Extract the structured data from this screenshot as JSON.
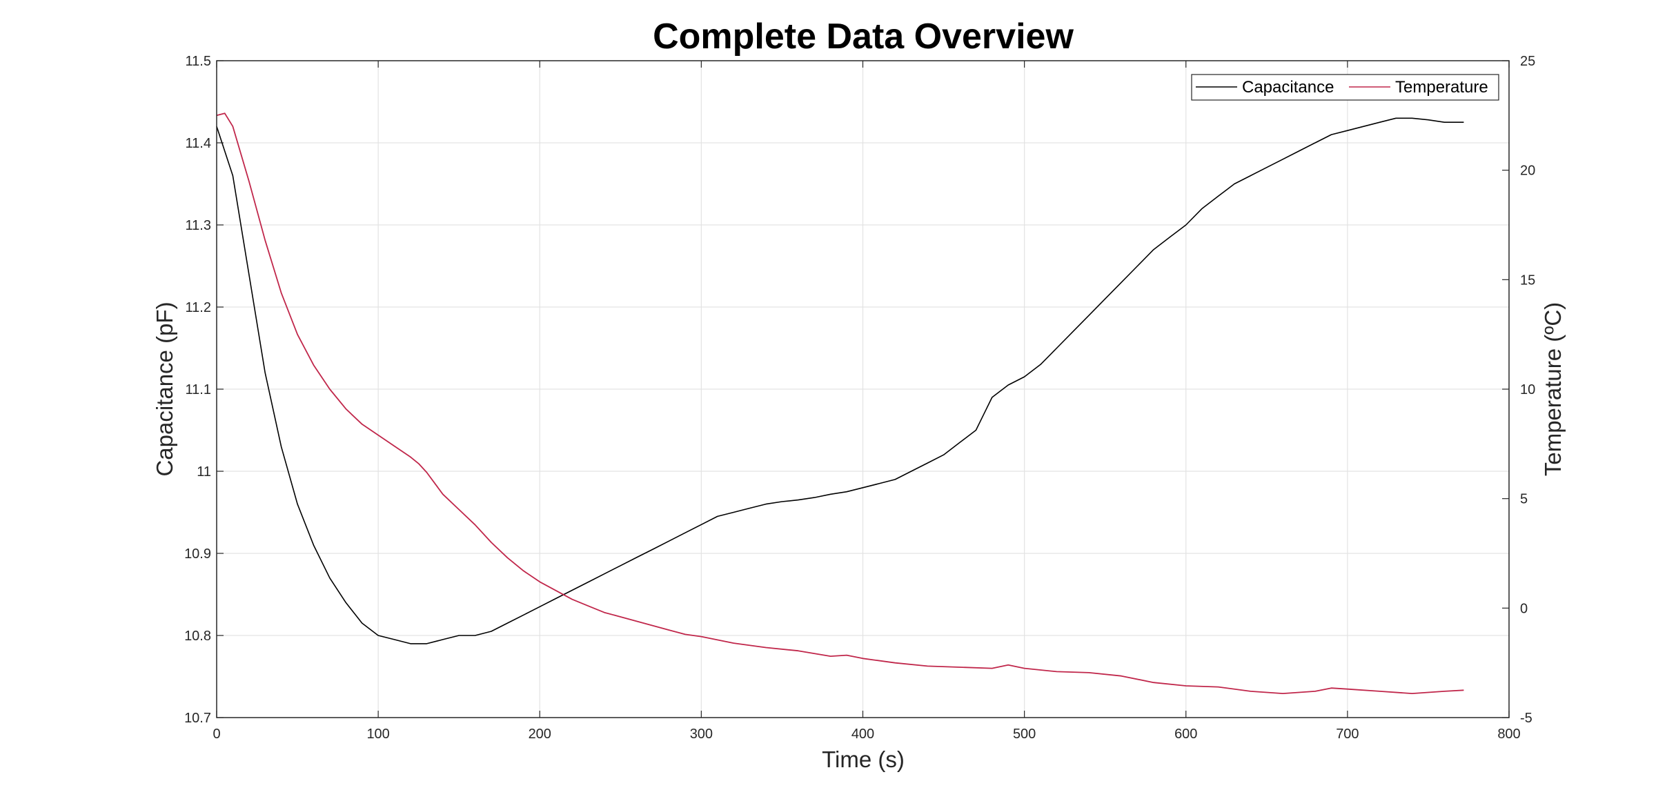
{
  "chart_data": {
    "type": "line",
    "title": "Complete Data Overview",
    "xlabel": "Time (s)",
    "ylabel": "Capacitance (pF)",
    "y2label": "Temperature (ºC)",
    "xlim": [
      0,
      800
    ],
    "ylim": [
      10.7,
      11.5
    ],
    "y2lim": [
      -5,
      25
    ],
    "xticks": [
      0,
      100,
      200,
      300,
      400,
      500,
      600,
      700,
      800
    ],
    "xtick_labels": [
      "0",
      "100",
      "200",
      "300",
      "400",
      "500",
      "600",
      "700",
      "800"
    ],
    "yticks": [
      10.7,
      10.8,
      10.9,
      11.0,
      11.1,
      11.2,
      11.3,
      11.4,
      11.5
    ],
    "ytick_labels": [
      "10.7",
      "10.8",
      "10.9",
      "11",
      "11.1",
      "11.2",
      "11.3",
      "11.4",
      "11.5"
    ],
    "y2ticks": [
      -5,
      0,
      5,
      10,
      15,
      20,
      25
    ],
    "y2tick_labels": [
      "-5",
      "0",
      "5",
      "10",
      "15",
      "20",
      "25"
    ],
    "grid": true,
    "legend_position": "top-right",
    "series": [
      {
        "name": "Capacitance",
        "axis": "left",
        "color": "#000000",
        "x": [
          0,
          10,
          20,
          30,
          40,
          50,
          60,
          70,
          80,
          90,
          100,
          110,
          120,
          130,
          140,
          150,
          160,
          170,
          180,
          190,
          200,
          210,
          220,
          230,
          240,
          250,
          260,
          270,
          280,
          290,
          300,
          310,
          320,
          330,
          340,
          350,
          360,
          370,
          380,
          390,
          400,
          410,
          420,
          430,
          440,
          450,
          460,
          470,
          475,
          480,
          490,
          500,
          510,
          520,
          530,
          540,
          550,
          560,
          570,
          580,
          590,
          600,
          610,
          620,
          630,
          640,
          650,
          660,
          670,
          680,
          690,
          700,
          710,
          720,
          730,
          740,
          750,
          760,
          772
        ],
        "values": [
          11.42,
          11.36,
          11.24,
          11.12,
          11.03,
          10.96,
          10.91,
          10.87,
          10.84,
          10.815,
          10.8,
          10.795,
          10.79,
          10.79,
          10.795,
          10.8,
          10.8,
          10.805,
          10.815,
          10.825,
          10.835,
          10.845,
          10.855,
          10.865,
          10.875,
          10.885,
          10.895,
          10.905,
          10.915,
          10.925,
          10.935,
          10.945,
          10.95,
          10.955,
          10.96,
          10.963,
          10.965,
          10.968,
          10.972,
          10.975,
          10.98,
          10.985,
          10.99,
          11.0,
          11.01,
          11.02,
          11.035,
          11.05,
          11.07,
          11.09,
          11.105,
          11.115,
          11.13,
          11.15,
          11.17,
          11.19,
          11.21,
          11.23,
          11.25,
          11.27,
          11.285,
          11.3,
          11.32,
          11.335,
          11.35,
          11.36,
          11.37,
          11.38,
          11.39,
          11.4,
          11.41,
          11.415,
          11.42,
          11.425,
          11.43,
          11.43,
          11.428,
          11.425,
          11.425
        ]
      },
      {
        "name": "Temperature",
        "axis": "right",
        "color": "#c0264a",
        "x": [
          0,
          5,
          10,
          20,
          30,
          40,
          50,
          60,
          70,
          80,
          90,
          100,
          110,
          120,
          125,
          130,
          140,
          150,
          160,
          170,
          180,
          190,
          200,
          210,
          220,
          230,
          240,
          250,
          260,
          270,
          280,
          290,
          300,
          320,
          340,
          360,
          380,
          390,
          400,
          420,
          440,
          460,
          480,
          490,
          500,
          520,
          540,
          560,
          580,
          600,
          620,
          640,
          660,
          680,
          690,
          700,
          720,
          740,
          760,
          772
        ],
        "values": [
          22.5,
          22.6,
          22.0,
          19.5,
          16.8,
          14.4,
          12.5,
          11.1,
          10.0,
          9.1,
          8.4,
          7.9,
          7.4,
          6.9,
          6.6,
          6.2,
          5.2,
          4.5,
          3.8,
          3.0,
          2.3,
          1.7,
          1.2,
          0.8,
          0.4,
          0.1,
          -0.2,
          -0.4,
          -0.6,
          -0.8,
          -1.0,
          -1.2,
          -1.3,
          -1.6,
          -1.8,
          -1.95,
          -2.2,
          -2.15,
          -2.3,
          -2.5,
          -2.65,
          -2.7,
          -2.75,
          -2.6,
          -2.75,
          -2.9,
          -2.95,
          -3.1,
          -3.4,
          -3.55,
          -3.6,
          -3.8,
          -3.9,
          -3.8,
          -3.65,
          -3.7,
          -3.8,
          -3.9,
          -3.8,
          -3.75
        ]
      }
    ]
  }
}
